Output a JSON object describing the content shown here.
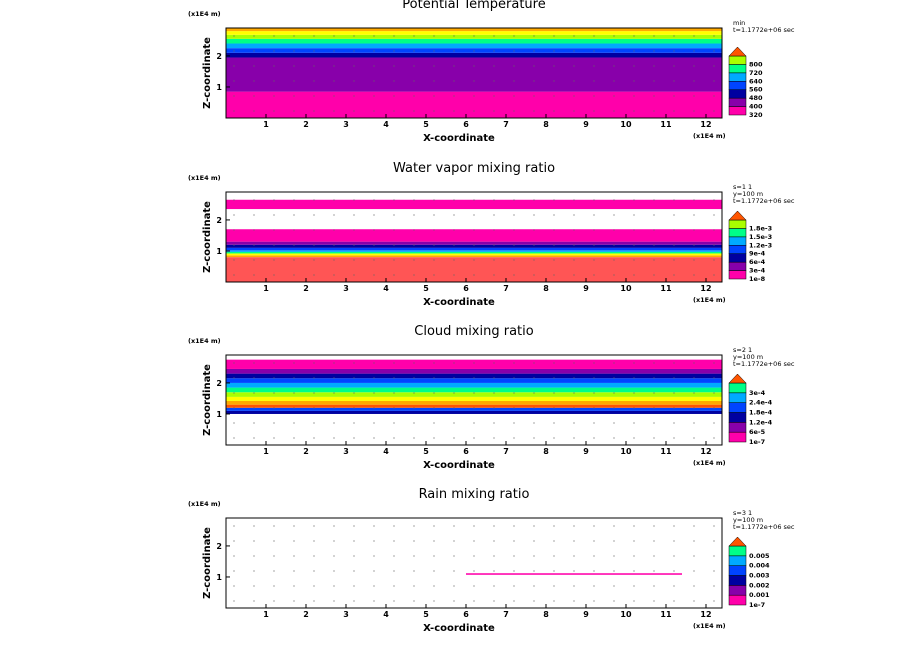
{
  "chart_data": [
    {
      "type": "heatmap",
      "title": "Potential Temperature",
      "xlabel": "X-coordinate",
      "ylabel": "Z-coordinate",
      "x_scale": "(x1E4 m)",
      "z_scale": "(x1E4 m)",
      "x_ticks": [
        "1",
        "2",
        "3",
        "4",
        "5",
        "6",
        "7",
        "8",
        "9",
        "10",
        "11",
        "12"
      ],
      "z_ticks": [
        "1",
        "2"
      ],
      "xlim": [
        0,
        12.4
      ],
      "zlim": [
        0,
        2.9
      ],
      "meta": [
        "min",
        "t=1.1772e+06 sec"
      ],
      "colorbar_labels": [
        "320",
        "400",
        "480",
        "560",
        "640",
        "720",
        "800"
      ],
      "bands": [
        {
          "z0": 0.0,
          "z1": 0.85,
          "color": "#ff00aa"
        },
        {
          "z0": 0.85,
          "z1": 1.95,
          "color": "#8800aa"
        },
        {
          "z0": 1.95,
          "z1": 2.1,
          "color": "#0000a0"
        },
        {
          "z0": 2.1,
          "z1": 2.25,
          "color": "#0044ff"
        },
        {
          "z0": 2.25,
          "z1": 2.4,
          "color": "#00aaff"
        },
        {
          "z0": 2.4,
          "z1": 2.55,
          "color": "#00ff88"
        },
        {
          "z0": 2.55,
          "z1": 2.68,
          "color": "#aaff00"
        },
        {
          "z0": 2.68,
          "z1": 2.8,
          "color": "#ffff00"
        },
        {
          "z0": 2.8,
          "z1": 2.9,
          "color": "#ffaa00"
        }
      ]
    },
    {
      "type": "heatmap",
      "title": "Water vapor mixing ratio",
      "xlabel": "X-coordinate",
      "ylabel": "Z-coordinate",
      "x_scale": "(x1E4 m)",
      "z_scale": "(x1E4 m)",
      "x_ticks": [
        "1",
        "2",
        "3",
        "4",
        "5",
        "6",
        "7",
        "8",
        "9",
        "10",
        "11",
        "12"
      ],
      "z_ticks": [
        "1",
        "2"
      ],
      "xlim": [
        0,
        12.4
      ],
      "zlim": [
        0,
        2.9
      ],
      "meta": [
        "s=1 1",
        "y=100 m",
        "t=1.1772e+06 sec"
      ],
      "colorbar_labels": [
        "1e-8",
        "3e-4",
        "6e-4",
        "9e-4",
        "1.2e-3",
        "1.5e-3",
        "1.8e-3"
      ],
      "bands": [
        {
          "z0": 0.0,
          "z1": 0.8,
          "color": "#ff5555"
        },
        {
          "z0": 0.8,
          "z1": 0.86,
          "color": "#ffaa00"
        },
        {
          "z0": 0.86,
          "z1": 0.92,
          "color": "#ffff00"
        },
        {
          "z0": 0.92,
          "z1": 0.97,
          "color": "#00ff88"
        },
        {
          "z0": 0.97,
          "z1": 1.02,
          "color": "#00aaff"
        },
        {
          "z0": 1.02,
          "z1": 1.1,
          "color": "#0044ff"
        },
        {
          "z0": 1.1,
          "z1": 1.2,
          "color": "#0000a0"
        },
        {
          "z0": 1.2,
          "z1": 1.3,
          "color": "#8800aa"
        },
        {
          "z0": 1.3,
          "z1": 1.7,
          "color": "#ff00aa"
        },
        {
          "z0": 2.35,
          "z1": 2.65,
          "color": "#ff00aa"
        }
      ]
    },
    {
      "type": "heatmap",
      "title": "Cloud mixing ratio",
      "xlabel": "X-coordinate",
      "ylabel": "Z-coordinate",
      "x_scale": "(x1E4 m)",
      "z_scale": "(x1E4 m)",
      "x_ticks": [
        "1",
        "2",
        "3",
        "4",
        "5",
        "6",
        "7",
        "8",
        "9",
        "10",
        "11",
        "12"
      ],
      "z_ticks": [
        "1",
        "2"
      ],
      "xlim": [
        0,
        12.4
      ],
      "zlim": [
        0,
        2.9
      ],
      "meta": [
        "s=2 1",
        "y=100 m",
        "t=1.1772e+06 sec"
      ],
      "colorbar_labels": [
        "1e-7",
        "6e-5",
        "1.2e-4",
        "1.8e-4",
        "2.4e-4",
        "3e-4"
      ],
      "bands": [
        {
          "z0": 1.0,
          "z1": 1.1,
          "color": "#0000a0"
        },
        {
          "z0": 1.1,
          "z1": 1.2,
          "color": "#0044ff"
        },
        {
          "z0": 1.2,
          "z1": 1.3,
          "color": "#ff5500"
        },
        {
          "z0": 1.3,
          "z1": 1.42,
          "color": "#ffaa00"
        },
        {
          "z0": 1.42,
          "z1": 1.55,
          "color": "#ffff00"
        },
        {
          "z0": 1.55,
          "z1": 1.7,
          "color": "#aaff00"
        },
        {
          "z0": 1.7,
          "z1": 1.85,
          "color": "#00ff88"
        },
        {
          "z0": 1.85,
          "z1": 2.0,
          "color": "#00aaff"
        },
        {
          "z0": 2.0,
          "z1": 2.15,
          "color": "#0044ff"
        },
        {
          "z0": 2.15,
          "z1": 2.3,
          "color": "#0000a0"
        },
        {
          "z0": 2.3,
          "z1": 2.45,
          "color": "#8800aa"
        },
        {
          "z0": 2.45,
          "z1": 2.75,
          "color": "#ff00aa"
        }
      ]
    },
    {
      "type": "heatmap",
      "title": "Rain mixing ratio",
      "xlabel": "X-coordinate",
      "ylabel": "Z-coordinate",
      "x_scale": "(x1E4 m)",
      "z_scale": "(x1E4 m)",
      "x_ticks": [
        "1",
        "2",
        "3",
        "4",
        "5",
        "6",
        "7",
        "8",
        "9",
        "10",
        "11",
        "12"
      ],
      "z_ticks": [
        "1",
        "2"
      ],
      "xlim": [
        0,
        12.4
      ],
      "zlim": [
        0,
        2.9
      ],
      "meta": [
        "s=3 1",
        "y=100 m",
        "t=1.1772e+06 sec"
      ],
      "colorbar_labels": [
        "1e-7",
        "0.001",
        "0.002",
        "0.003",
        "0.004",
        "0.005"
      ],
      "bands": [
        {
          "z0": 1.07,
          "z1": 1.12,
          "color": "#ff00aa",
          "x0": 6.0,
          "x1": 11.4
        }
      ]
    }
  ],
  "colorbar_palette": [
    "#ff00aa",
    "#8800aa",
    "#0000a0",
    "#0044ff",
    "#00aaff",
    "#00ff88",
    "#aaff00",
    "#ffff00",
    "#ffaa00",
    "#ff5500"
  ]
}
